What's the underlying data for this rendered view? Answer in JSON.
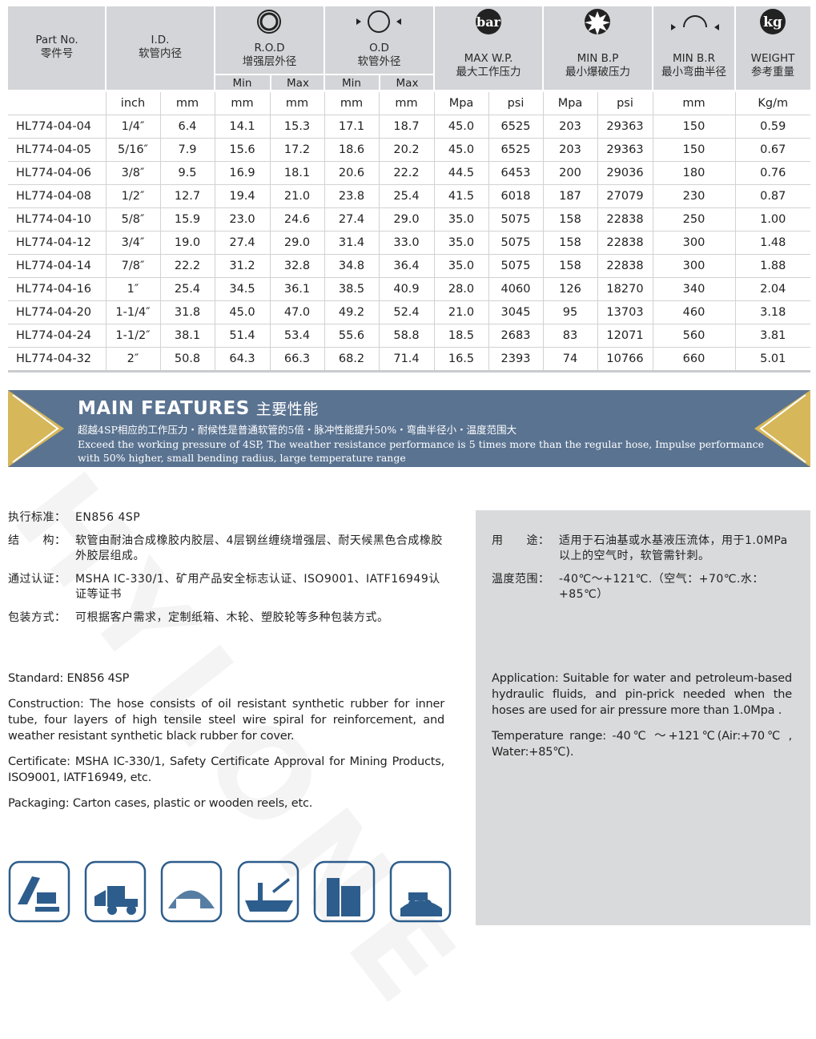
{
  "table": {
    "groups": [
      {
        "en": "Part No.",
        "cn": "零件号"
      },
      {
        "en": "I.D.",
        "cn": "软管内径"
      },
      {
        "en": "R.O.D",
        "cn": "增强层外径"
      },
      {
        "en": "O.D",
        "cn": "软管外径"
      },
      {
        "en": "MAX W.P.",
        "cn": "最大工作压力"
      },
      {
        "en": "MIN B.P",
        "cn": "最小爆破压力"
      },
      {
        "en": "MIN B.R",
        "cn": "最小弯曲半径"
      },
      {
        "en": "WEIGHT",
        "cn": "参考重量"
      }
    ],
    "icon_labels": [
      "bar",
      "kg"
    ],
    "subheaders": [
      "Min",
      "Max",
      "Min",
      "Max"
    ],
    "units": [
      "inch",
      "mm",
      "mm",
      "mm",
      "mm",
      "mm",
      "Mpa",
      "psi",
      "Mpa",
      "psi",
      "mm",
      "Kg/m"
    ],
    "rows": [
      [
        "HL774-04-04",
        "1/4″",
        "6.4",
        "14.1",
        "15.3",
        "17.1",
        "18.7",
        "45.0",
        "6525",
        "203",
        "29363",
        "150",
        "0.59"
      ],
      [
        "HL774-04-05",
        "5/16″",
        "7.9",
        "15.6",
        "17.2",
        "18.6",
        "20.2",
        "45.0",
        "6525",
        "203",
        "29363",
        "150",
        "0.67"
      ],
      [
        "HL774-04-06",
        "3/8″",
        "9.5",
        "16.9",
        "18.1",
        "20.6",
        "22.2",
        "44.5",
        "6453",
        "200",
        "29036",
        "180",
        "0.76"
      ],
      [
        "HL774-04-08",
        "1/2″",
        "12.7",
        "19.4",
        "21.0",
        "23.8",
        "25.4",
        "41.5",
        "6018",
        "187",
        "27079",
        "230",
        "0.87"
      ],
      [
        "HL774-04-10",
        "5/8″",
        "15.9",
        "23.0",
        "24.6",
        "27.4",
        "29.0",
        "35.0",
        "5075",
        "158",
        "22838",
        "250",
        "1.00"
      ],
      [
        "HL774-04-12",
        "3/4″",
        "19.0",
        "27.4",
        "29.0",
        "31.4",
        "33.0",
        "35.0",
        "5075",
        "158",
        "22838",
        "300",
        "1.48"
      ],
      [
        "HL774-04-14",
        "7/8″",
        "22.2",
        "31.2",
        "32.8",
        "34.8",
        "36.4",
        "35.0",
        "5075",
        "158",
        "22838",
        "300",
        "1.88"
      ],
      [
        "HL774-04-16",
        "1″",
        "25.4",
        "34.5",
        "36.1",
        "38.5",
        "40.9",
        "28.0",
        "4060",
        "126",
        "18270",
        "340",
        "2.04"
      ],
      [
        "HL774-04-20",
        "1-1/4″",
        "31.8",
        "45.0",
        "47.0",
        "49.2",
        "52.4",
        "21.0",
        "3045",
        "95",
        "13703",
        "460",
        "3.18"
      ],
      [
        "HL774-04-24",
        "1-1/2″",
        "38.1",
        "51.4",
        "53.4",
        "55.6",
        "58.8",
        "18.5",
        "2683",
        "83",
        "12071",
        "560",
        "3.81"
      ],
      [
        "HL774-04-32",
        "2″",
        "50.8",
        "64.3",
        "66.3",
        "68.2",
        "71.4",
        "16.5",
        "2393",
        "74",
        "10766",
        "660",
        "5.01"
      ]
    ]
  },
  "features": {
    "title": "MAIN FEATURES",
    "title_cn": "主要性能",
    "text_cn": "超越4SP相应的工作压力・耐候性是普通软管的5倍・脉冲性能提升50%・弯曲半径小・温度范围大",
    "text_en": "Exceed the working pressure of 4SP, The weather resistance performance is 5 times more than the regular hose, Impulse performance with 50% higher, small bending radius, large temperature range"
  },
  "specs_cn_left": [
    {
      "label": "执行标准：",
      "text": "EN856 4SP"
    },
    {
      "label": "结　　构：",
      "text": "软管由耐油合成橡胶内胶层、4层钢丝缠绕增强层、耐天候黑色合成橡胶外胶层组成。"
    },
    {
      "label": "通过认证：",
      "text": "MSHA IC-330/1、矿用产品安全标志认证、ISO9001、IATF16949认证等证书"
    },
    {
      "label": "包装方式：",
      "text": "可根据客户需求，定制纸箱、木轮、塑胶轮等多种包装方式。"
    }
  ],
  "specs_cn_right": [
    {
      "label": "用　　途：",
      "text": "适用于石油基或水基液压流体，用于1.0MPa以上的空气时，软管需针刺。"
    },
    {
      "label": "温度范围：",
      "text": "-40℃～+121℃.（空气：+70℃.水：+85℃）"
    }
  ],
  "specs_en_left": [
    "Standard: EN856 4SP",
    "Construction:   The hose consists of oil resistant synthetic rubber for inner tube,  four layers of high tensile steel wire spiral for reinforcement, and weather resistant synthetic black rubber for cover.",
    "Certificate: MSHA IC-330/1, Safety Certificate Approval for Mining Products, ISO9001, IATF16949, etc.",
    "Packaging: Carton cases, plastic or wooden reels, etc."
  ],
  "specs_en_right": [
    "Application: Suitable for water and petroleum-based hydraulic fluids, and pin-prick needed when the hoses are used for air pressure more than 1.0Mpa .",
    "Temperature range: -40℃ ～+121℃(Air:+70℃ , Water:+85℃)."
  ],
  "watermark": "HYLONE"
}
